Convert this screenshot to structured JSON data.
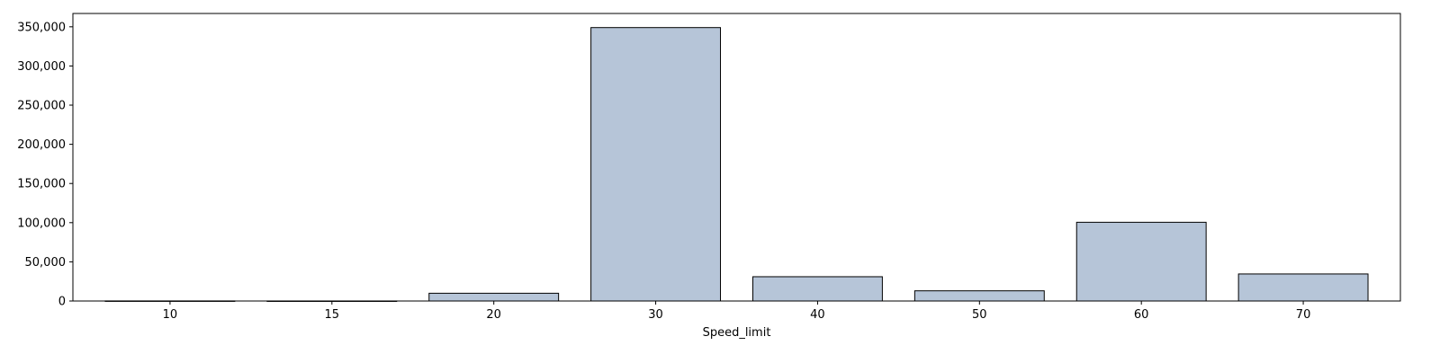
{
  "chart_data": {
    "type": "bar",
    "title": "",
    "xlabel": "Speed_limit",
    "ylabel": "",
    "categories": [
      "10",
      "15",
      "20",
      "30",
      "40",
      "50",
      "60",
      "70"
    ],
    "values": [
      100,
      50,
      9900,
      349000,
      31000,
      13000,
      100500,
      34500
    ],
    "ylim": [
      0,
      367000
    ],
    "yticks": [
      0,
      50000,
      100000,
      150000,
      200000,
      250000,
      300000,
      350000
    ],
    "ytick_labels": [
      "0",
      "50,000",
      "100,000",
      "150,000",
      "200,000",
      "250,000",
      "300,000",
      "350,000"
    ],
    "grid": false,
    "legend": "none",
    "colors": {
      "bar_fill": "#b6c5d8",
      "bar_edge": "#000000",
      "axis": "#000000"
    }
  }
}
